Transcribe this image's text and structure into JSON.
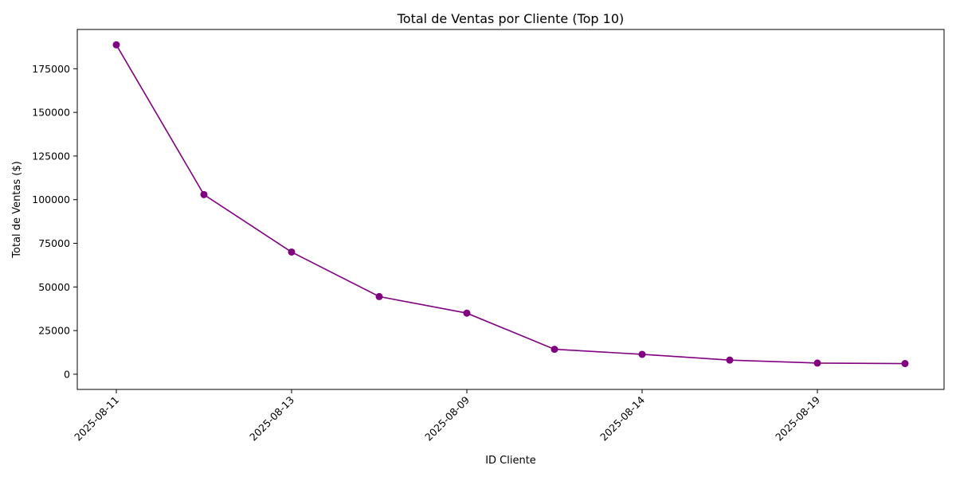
{
  "chart_data": {
    "type": "line",
    "title": "Total de Ventas por Cliente (Top 10)",
    "xlabel": "ID Cliente",
    "ylabel": "Total de Ventas ($)",
    "x_tick_labels": [
      "2025-08-11",
      "2025-08-13",
      "2025-08-09",
      "2025-08-14",
      "2025-08-19"
    ],
    "x_tick_indices": [
      0,
      2,
      4,
      6,
      8
    ],
    "y_ticks": [
      0,
      25000,
      50000,
      75000,
      100000,
      125000,
      150000,
      175000
    ],
    "ylim": [
      -8700,
      197500
    ],
    "series": [
      {
        "color": "#800080",
        "values": [
          188700,
          102900,
          70000,
          44500,
          35000,
          14300,
          11400,
          8100,
          6400,
          6100
        ]
      }
    ],
    "grid": false,
    "legend": "none"
  }
}
